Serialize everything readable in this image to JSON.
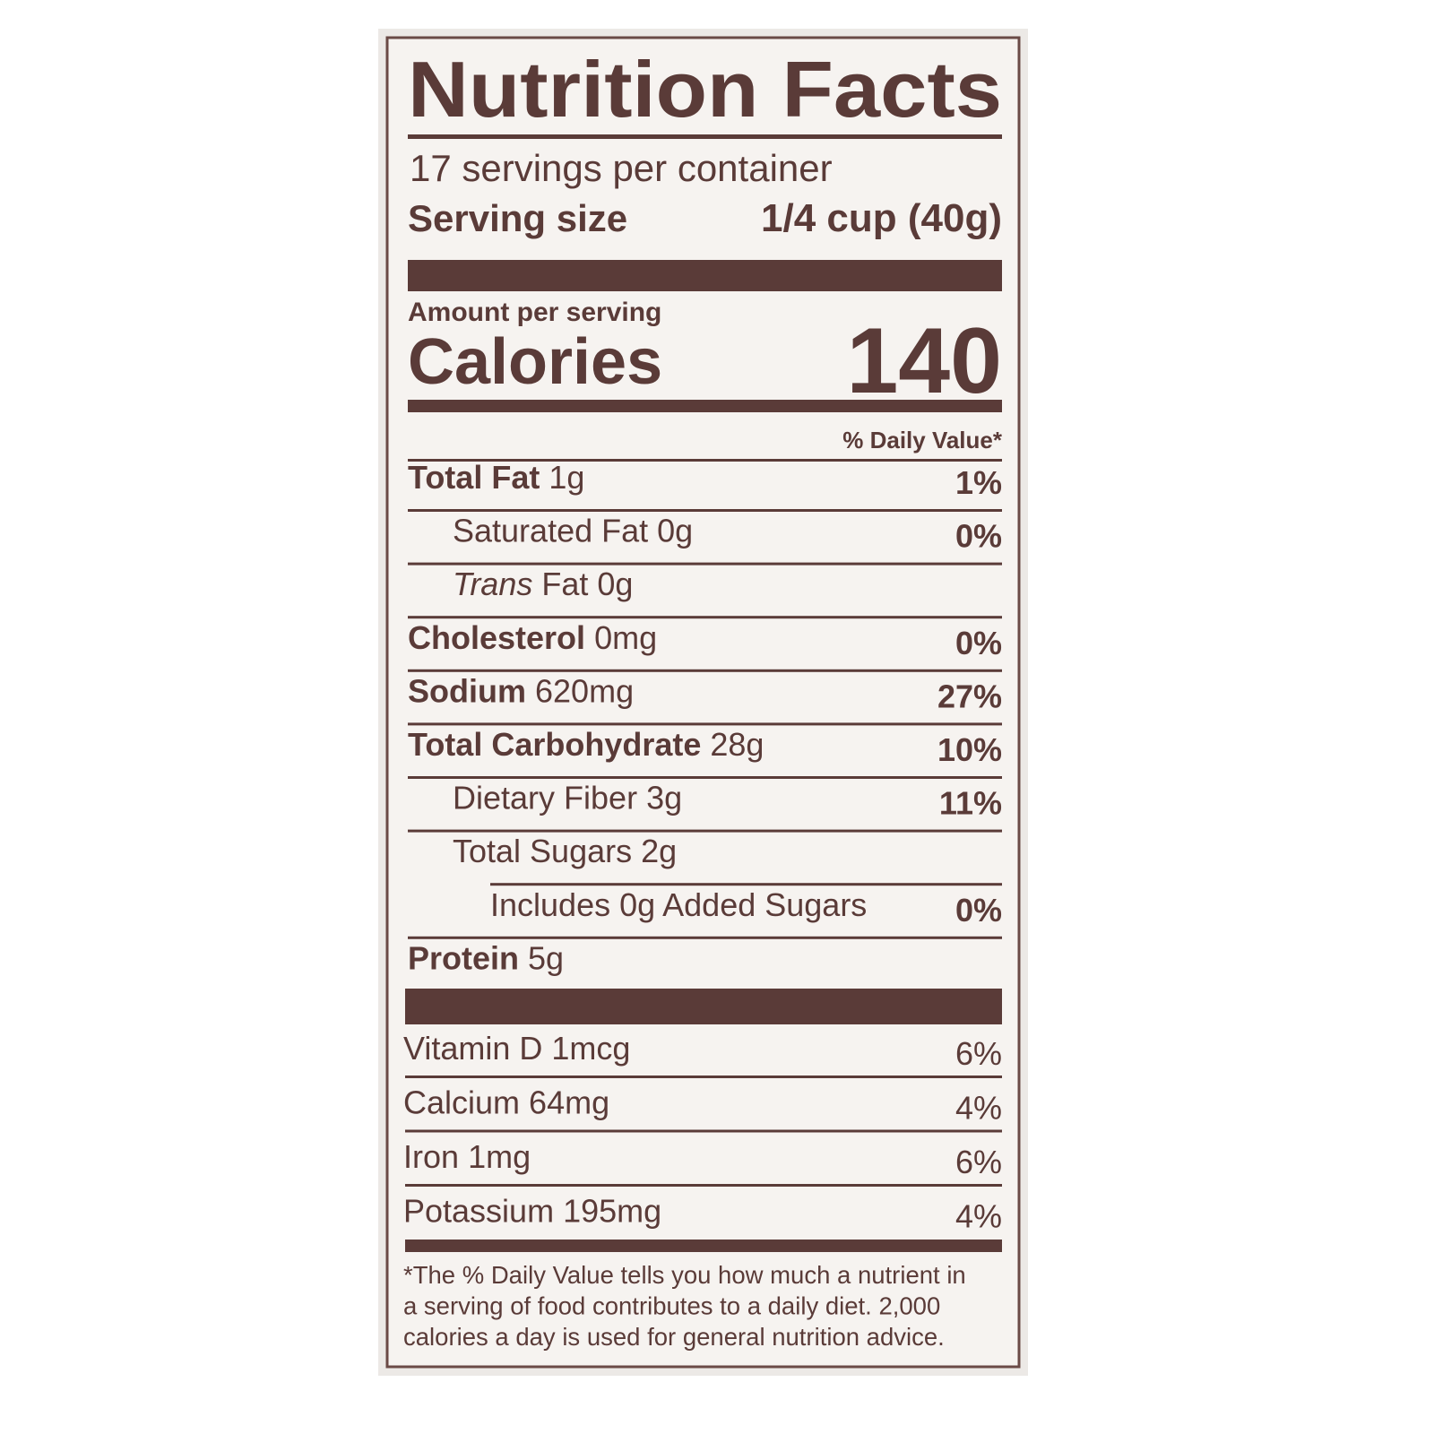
{
  "title": "Nutrition Facts",
  "servings": "17 servings per container",
  "serving_size": {
    "label": "Serving size",
    "value": "1/4 cup (40g)"
  },
  "amount_per_serving": "Amount per serving",
  "calories": {
    "label": "Calories",
    "value": "140"
  },
  "daily_value_header": "% Daily Value*",
  "nutrients": [
    {
      "name": "Total Fat",
      "amount": "1g",
      "dv": "1%",
      "sub": [
        {
          "name": "Saturated Fat",
          "amount": "0g",
          "dv": "0%"
        },
        {
          "name_italic": "Trans",
          "name": "Fat",
          "amount": "0g"
        }
      ]
    },
    {
      "name": "Cholesterol",
      "amount": "0mg",
      "dv": "0%"
    },
    {
      "name": "Sodium",
      "amount": "620mg",
      "dv": "27%"
    },
    {
      "name": "Total Carbohydrate",
      "amount": "28g",
      "dv": "10%",
      "sub": [
        {
          "name": "Dietary Fiber",
          "amount": "3g",
          "dv": "11%"
        },
        {
          "name": "Total Sugars",
          "amount": "2g",
          "sub": [
            {
              "name": "Includes 0g Added Sugars",
              "dv": "0%"
            }
          ]
        }
      ]
    },
    {
      "name": "Protein",
      "amount": "5g"
    }
  ],
  "vitamins": [
    {
      "name": "Vitamin D",
      "amount": "1mcg",
      "dv": "6%"
    },
    {
      "name": "Calcium",
      "amount": "64mg",
      "dv": "4%"
    },
    {
      "name": "Iron",
      "amount": "1mg",
      "dv": "6%"
    },
    {
      "name": "Potassium",
      "amount": "195mg",
      "dv": "4%"
    }
  ],
  "footnote": [
    "*The % Daily Value tells you how much a nutrient in",
    "a serving of food contributes to a daily diet. 2,000",
    "calories a day is used for general nutrition advice."
  ]
}
